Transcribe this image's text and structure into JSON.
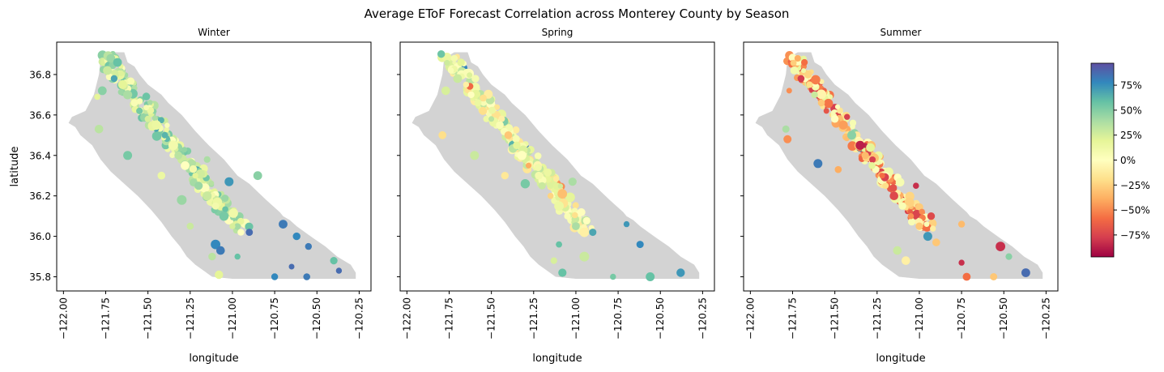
{
  "title": "Average EToF Forecast Correlation across Monterey County by Season",
  "colors": {
    "county_fill": "#d3d3d3",
    "colormap": [
      "#9e0142",
      "#d53e4f",
      "#f46d43",
      "#fdae61",
      "#fee08b",
      "#ffffbf",
      "#e6f598",
      "#abdda4",
      "#66c2a5",
      "#3288bd",
      "#5e4fa2"
    ]
  },
  "chart_data": [
    {
      "type": "scatter",
      "title": "Winter",
      "xlabel": "longitude",
      "ylabel": "latitude",
      "xlim": [
        -122.04,
        -120.18
      ],
      "ylim": [
        35.73,
        36.96
      ],
      "xticks": [
        -122.0,
        -121.75,
        -121.5,
        -121.25,
        -121.0,
        -120.75,
        -120.5,
        -120.25
      ],
      "xtick_labels": [
        "−122.00",
        "−121.75",
        "−121.50",
        "−121.25",
        "−121.00",
        "−120.75",
        "−120.50",
        "−120.25"
      ],
      "yticks": [
        35.8,
        36.0,
        36.2,
        36.4,
        36.6,
        36.8
      ],
      "ytick_labels": [
        "35.8",
        "36.0",
        "36.2",
        "36.4",
        "36.6",
        "36.8"
      ],
      "dominant_range": [
        0.0,
        0.6
      ],
      "points": [
        [
          -121.72,
          36.88,
          0.45
        ],
        [
          -121.68,
          36.86,
          0.6
        ],
        [
          -121.74,
          36.82,
          0.3
        ],
        [
          -121.7,
          36.78,
          0.7
        ],
        [
          -121.65,
          36.75,
          0.2
        ],
        [
          -121.77,
          36.72,
          0.5
        ],
        [
          -121.62,
          36.7,
          0.4
        ],
        [
          -121.58,
          36.66,
          0.05
        ],
        [
          -121.55,
          36.62,
          0.55
        ],
        [
          -121.5,
          36.58,
          0.25
        ],
        [
          -121.45,
          36.55,
          0.15
        ],
        [
          -121.4,
          36.5,
          0.65
        ],
        [
          -121.35,
          36.45,
          0.1
        ],
        [
          -121.32,
          36.4,
          0.35
        ],
        [
          -121.28,
          36.35,
          0.0
        ],
        [
          -121.22,
          36.3,
          0.2
        ],
        [
          -121.2,
          36.25,
          0.45
        ],
        [
          -121.15,
          36.2,
          0.3
        ],
        [
          -121.1,
          36.15,
          0.1
        ],
        [
          -121.05,
          36.1,
          0.55
        ],
        [
          -121.0,
          36.05,
          0.25
        ],
        [
          -120.95,
          36.02,
          0.0
        ],
        [
          -121.1,
          35.96,
          0.8
        ],
        [
          -121.07,
          35.93,
          0.85
        ],
        [
          -120.9,
          36.02,
          0.9
        ],
        [
          -120.7,
          36.06,
          0.85
        ],
        [
          -120.62,
          36.0,
          0.8
        ],
        [
          -120.55,
          35.95,
          0.85
        ],
        [
          -120.65,
          35.85,
          0.9
        ],
        [
          -120.56,
          35.8,
          0.85
        ],
        [
          -120.37,
          35.83,
          0.9
        ],
        [
          -120.4,
          35.88,
          0.6
        ],
        [
          -120.75,
          35.8,
          0.8
        ],
        [
          -121.15,
          36.38,
          0.4
        ],
        [
          -121.79,
          36.53,
          0.35
        ],
        [
          -121.62,
          36.4,
          0.55
        ],
        [
          -121.02,
          36.27,
          0.75
        ],
        [
          -120.85,
          36.3,
          0.5
        ],
        [
          -121.8,
          36.69,
          0.2
        ],
        [
          -121.42,
          36.3,
          0.15
        ],
        [
          -121.3,
          36.18,
          0.45
        ],
        [
          -121.25,
          36.05,
          0.3
        ],
        [
          -121.12,
          35.9,
          0.35
        ],
        [
          -120.97,
          35.9,
          0.6
        ],
        [
          -121.08,
          35.81,
          0.2
        ]
      ]
    },
    {
      "type": "scatter",
      "title": "Spring",
      "xlabel": "longitude",
      "ylabel": "",
      "xlim": [
        -122.04,
        -120.18
      ],
      "ylim": [
        35.73,
        36.96
      ],
      "xticks": [
        -122.0,
        -121.75,
        -121.5,
        -121.25,
        -121.0,
        -120.75,
        -120.5,
        -120.25
      ],
      "xtick_labels": [
        "−122.00",
        "−121.75",
        "−121.50",
        "−121.25",
        "−121.00",
        "−120.75",
        "−120.50",
        "−120.25"
      ],
      "yticks": [
        35.8,
        36.0,
        36.2,
        36.4,
        36.6,
        36.8
      ],
      "dominant_range": [
        -0.2,
        0.35
      ],
      "points": [
        [
          -121.72,
          36.88,
          0.1
        ],
        [
          -121.68,
          36.86,
          0.2
        ],
        [
          -121.74,
          36.82,
          0.05
        ],
        [
          -121.7,
          36.78,
          0.3
        ],
        [
          -121.65,
          36.75,
          -0.1
        ],
        [
          -121.77,
          36.72,
          0.25
        ],
        [
          -121.62,
          36.7,
          0.0
        ],
        [
          -121.58,
          36.66,
          0.15
        ],
        [
          -121.55,
          36.62,
          -0.2
        ],
        [
          -121.5,
          36.58,
          0.35
        ],
        [
          -121.45,
          36.55,
          0.05
        ],
        [
          -121.4,
          36.5,
          -0.3
        ],
        [
          -121.35,
          36.45,
          0.2
        ],
        [
          -121.32,
          36.4,
          0.0
        ],
        [
          -121.28,
          36.35,
          -0.4
        ],
        [
          -121.22,
          36.3,
          0.1
        ],
        [
          -121.2,
          36.25,
          0.3
        ],
        [
          -121.15,
          36.2,
          -0.25
        ],
        [
          -121.1,
          36.15,
          0.15
        ],
        [
          -121.05,
          36.1,
          0.05
        ],
        [
          -121.0,
          36.05,
          0.4
        ],
        [
          -120.95,
          36.02,
          -0.1
        ],
        [
          -121.1,
          35.96,
          0.6
        ],
        [
          -120.9,
          36.02,
          0.7
        ],
        [
          -120.7,
          36.06,
          0.75
        ],
        [
          -120.62,
          35.96,
          0.8
        ],
        [
          -120.38,
          35.82,
          0.75
        ],
        [
          -120.56,
          35.8,
          0.6
        ],
        [
          -120.78,
          35.8,
          0.55
        ],
        [
          -121.79,
          36.5,
          -0.2
        ],
        [
          -121.6,
          36.4,
          0.3
        ],
        [
          -121.3,
          36.26,
          0.55
        ],
        [
          -121.02,
          36.27,
          0.4
        ],
        [
          -121.42,
          36.3,
          -0.15
        ],
        [
          -121.08,
          35.82,
          0.6
        ],
        [
          -120.95,
          35.9,
          0.3
        ],
        [
          -121.13,
          35.88,
          0.25
        ]
      ]
    },
    {
      "type": "scatter",
      "title": "Summer",
      "xlabel": "longitude",
      "ylabel": "",
      "xlim": [
        -122.04,
        -120.18
      ],
      "ylim": [
        35.73,
        36.96
      ],
      "xticks": [
        -122.0,
        -121.75,
        -121.5,
        -121.25,
        -121.0,
        -120.75,
        -120.5,
        -120.25
      ],
      "xtick_labels": [
        "−122.00",
        "−121.75",
        "−121.50",
        "−121.25",
        "−121.00",
        "−120.75",
        "−120.50",
        "−120.25"
      ],
      "yticks": [
        35.8,
        36.0,
        36.2,
        36.4,
        36.6,
        36.8
      ],
      "dominant_range": [
        -0.8,
        0.2
      ],
      "points": [
        [
          -121.72,
          36.88,
          -0.4
        ],
        [
          -121.68,
          36.86,
          -0.6
        ],
        [
          -121.74,
          36.82,
          0.1
        ],
        [
          -121.7,
          36.78,
          -0.8
        ],
        [
          -121.65,
          36.75,
          -0.2
        ],
        [
          -121.77,
          36.72,
          -0.5
        ],
        [
          -121.62,
          36.7,
          0.3
        ],
        [
          -121.58,
          36.66,
          -0.3
        ],
        [
          -121.55,
          36.62,
          -0.7
        ],
        [
          -121.5,
          36.58,
          0.0
        ],
        [
          -121.45,
          36.55,
          -0.45
        ],
        [
          -121.4,
          36.5,
          0.5
        ],
        [
          -121.35,
          36.45,
          -0.9
        ],
        [
          -121.32,
          36.4,
          -0.35
        ],
        [
          -121.28,
          36.35,
          0.2
        ],
        [
          -121.22,
          36.3,
          -0.6
        ],
        [
          -121.2,
          36.25,
          -0.2
        ],
        [
          -121.15,
          36.2,
          -0.75
        ],
        [
          -121.1,
          36.15,
          0.05
        ],
        [
          -121.05,
          36.1,
          -0.5
        ],
        [
          -121.0,
          36.05,
          -0.3
        ],
        [
          -120.95,
          36.0,
          0.75
        ],
        [
          -121.02,
          36.25,
          -0.85
        ],
        [
          -120.9,
          35.97,
          -0.3
        ],
        [
          -120.75,
          35.87,
          -0.85
        ],
        [
          -120.72,
          35.8,
          -0.6
        ],
        [
          -120.56,
          35.8,
          -0.3
        ],
        [
          -120.52,
          35.95,
          -0.85
        ],
        [
          -120.37,
          35.82,
          0.9
        ],
        [
          -120.47,
          35.9,
          0.5
        ],
        [
          -121.79,
          36.53,
          0.4
        ],
        [
          -121.6,
          36.36,
          0.85
        ],
        [
          -121.78,
          36.48,
          -0.5
        ],
        [
          -121.48,
          36.33,
          -0.4
        ],
        [
          -120.75,
          36.06,
          -0.35
        ],
        [
          -121.13,
          35.93,
          0.3
        ],
        [
          -121.08,
          35.88,
          -0.1
        ],
        [
          -120.93,
          36.1,
          -0.75
        ]
      ]
    }
  ],
  "colorbar": {
    "ticks": [
      75,
      50,
      25,
      0,
      -25,
      -50,
      -75
    ],
    "tick_labels": [
      "75%",
      "50%",
      "25%",
      "0%",
      "−25%",
      "−50%",
      "−75%"
    ],
    "range": [
      -0.97,
      0.97
    ]
  }
}
